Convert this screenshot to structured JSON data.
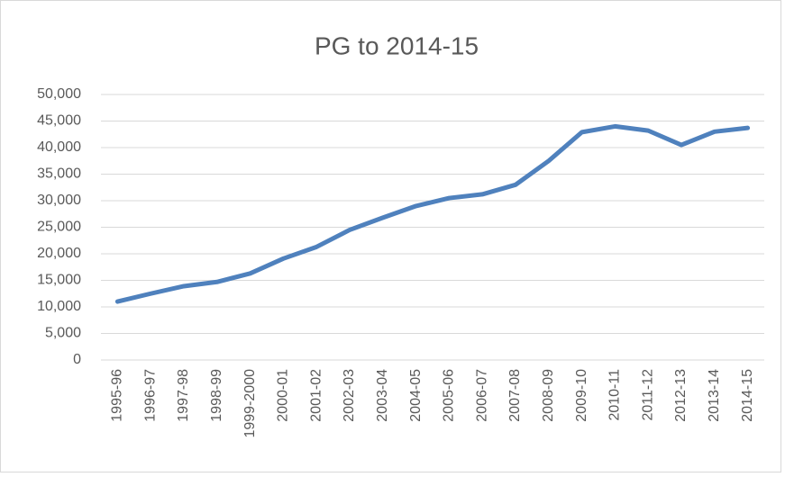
{
  "chart_data": {
    "type": "line",
    "title": "PG to 2014-15",
    "categories": [
      "1995-96",
      "1996-97",
      "1997-98",
      "1998-99",
      "1999-2000",
      "2000-01",
      "2001-02",
      "2002-03",
      "2003-04",
      "2004-05",
      "2005-06",
      "2006-07",
      "2007-08",
      "2008-09",
      "2009-10",
      "2010-11",
      "2011-12",
      "2012-13",
      "2013-14",
      "2014-15"
    ],
    "series": [
      {
        "name": "PG",
        "color": "#4f81bd",
        "values": [
          11000,
          12500,
          13900,
          14700,
          16300,
          19100,
          21300,
          24500,
          26800,
          29000,
          30500,
          31200,
          33000,
          37500,
          42900,
          44000,
          43200,
          40500,
          43000,
          43700
        ]
      }
    ],
    "ylim": [
      0,
      50000
    ],
    "yticks": [
      0,
      {
        "value": 5000,
        "label": "5,000"
      },
      {
        "value": 10000,
        "label": "10,000"
      },
      {
        "value": 15000,
        "label": "15,000"
      },
      {
        "value": 20000,
        "label": "20,000"
      },
      {
        "value": 25000,
        "label": "25,000"
      },
      {
        "value": 30000,
        "label": "30,000"
      },
      {
        "value": 35000,
        "label": "35,000"
      },
      {
        "value": 40000,
        "label": "40,000"
      },
      {
        "value": 45000,
        "label": "45,000"
      },
      {
        "value": 50000,
        "label": "50,000"
      }
    ],
    "grid": true
  }
}
